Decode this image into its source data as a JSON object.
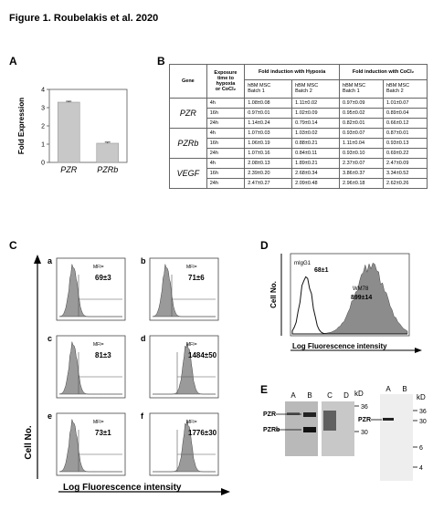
{
  "figure_title": "Figure 1. Roubelakis et al. 2020",
  "panels": {
    "A": {
      "letter": "A",
      "chart_data": {
        "type": "bar",
        "categories": [
          "PZR",
          "PZRb"
        ],
        "values": [
          3.3,
          1.05
        ],
        "errors": [
          0.05,
          0.06
        ],
        "ylabel": "Fold Expression",
        "ylim": [
          0,
          4
        ],
        "yticks": [
          "0",
          "1",
          "2",
          "3",
          "4"
        ]
      }
    },
    "B": {
      "letter": "B",
      "table": {
        "col_gene": "Gene",
        "col_time": [
          "Exposure",
          "time to",
          "hypoxia",
          "or CoCl₂"
        ],
        "hypoxia_header": "Fold induction with Hypoxia",
        "cocl_header": "Fold induction with CoCl₂",
        "batch1": [
          "hBM MSC",
          "Batch 1"
        ],
        "batch2": [
          "hBM MSC",
          "Batch 2"
        ],
        "groups": [
          {
            "gene": "PZR",
            "rows": [
              [
                "4h",
                "1.08±0.08",
                "1.11±0.02",
                "0.97±0.09",
                "1.01±0.07"
              ],
              [
                "16h",
                "0.97±0.01",
                "1.02±0.09",
                "0.95±0.02",
                "0.89±0.04"
              ],
              [
                "24h",
                "1.14±0.24",
                "0.79±0.14",
                "0.82±0.01",
                "0.66±0.12"
              ]
            ]
          },
          {
            "gene": "PZRb",
            "rows": [
              [
                "4h",
                "1.07±0.03",
                "1.03±0.02",
                "0.93±0.07",
                "0.87±0.01"
              ],
              [
                "16h",
                "1.06±0.19",
                "0.88±0.21",
                "1.11±0.04",
                "0.93±0.13"
              ],
              [
                "24h",
                "1.07±0.16",
                "0.84±0.11",
                "0.93±0.10",
                "0.69±0.22"
              ]
            ]
          },
          {
            "gene": "VEGF",
            "rows": [
              [
                "4h",
                "2.08±0.13",
                "1.89±0.21",
                "2.37±0.07",
                "2.47±0.09"
              ],
              [
                "16h",
                "2.39±0.20",
                "2.68±0.34",
                "3.86±0.37",
                "3.34±0.52"
              ],
              [
                "24h",
                "2.47±0.27",
                "2.09±0.48",
                "2.96±0.18",
                "2.62±0.26"
              ]
            ]
          }
        ]
      }
    },
    "C": {
      "letter": "C",
      "ylabel": "Cell No.",
      "xlabel": "Log Fluorescence intensity",
      "mfi_label": "MFI=",
      "plots": [
        {
          "sub": "a",
          "value": "69±3",
          "p": 0
        },
        {
          "sub": "b",
          "value": "71±6",
          "p": 0
        },
        {
          "sub": "c",
          "value": "81±3",
          "p": 0
        },
        {
          "sub": "d",
          "value": "1484±50",
          "p": 1
        },
        {
          "sub": "e",
          "value": "73±1",
          "p": 0
        },
        {
          "sub": "f",
          "value": "1776±30",
          "p": 1
        }
      ]
    },
    "D": {
      "letter": "D",
      "ylabel": "Cell No.",
      "xlabel": "Log Fluorescence intensity",
      "ctrl_label": "mIgG1",
      "ctrl_value": "68±1",
      "sample_label": "WM78",
      "sample_value": "899±14"
    },
    "E": {
      "letter": "E",
      "blot1_lanes": [
        "A",
        "B",
        "C",
        "D"
      ],
      "blot1_bands": [
        "PZR",
        "PZRb"
      ],
      "blot1_kd": "kD",
      "blot1_markers": [
        "36",
        "30"
      ],
      "blot2_lanes": [
        "A",
        "B"
      ],
      "blot2_band": "PZR",
      "blot2_kd": "kD",
      "blot2_markers": [
        "36",
        "30",
        "6",
        "4"
      ]
    }
  }
}
